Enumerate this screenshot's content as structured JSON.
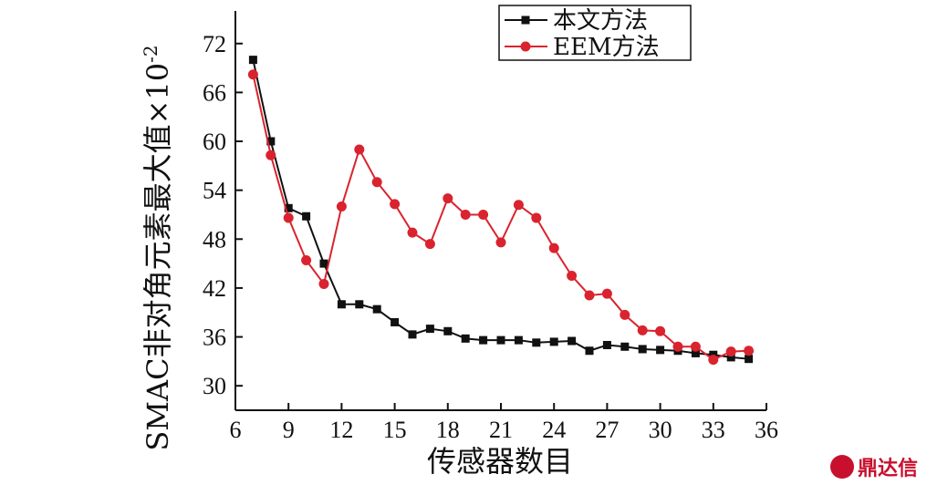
{
  "chart_data": {
    "type": "line",
    "xlabel": "传感器数目",
    "ylabel": "SMAC非对角元素最大值×10",
    "ylabel_exp": "-2",
    "xlim": [
      6,
      36
    ],
    "ylim": [
      27,
      76
    ],
    "xticks": [
      6,
      9,
      12,
      15,
      18,
      21,
      24,
      27,
      30,
      33,
      36
    ],
    "yticks": [
      30,
      36,
      42,
      48,
      54,
      60,
      66,
      72
    ],
    "legend": {
      "placement": "top-right"
    },
    "series": [
      {
        "name": "本文方法",
        "color": "#111111",
        "marker": "square",
        "x": [
          7,
          8,
          9,
          10,
          11,
          12,
          13,
          14,
          15,
          16,
          17,
          18,
          19,
          20,
          21,
          22,
          23,
          24,
          25,
          26,
          27,
          28,
          29,
          30,
          31,
          32,
          33,
          34,
          35
        ],
        "y": [
          70,
          60,
          51.8,
          50.8,
          45,
          40,
          40,
          39.4,
          37.8,
          36.3,
          37,
          36.7,
          35.8,
          35.6,
          35.6,
          35.6,
          35.3,
          35.4,
          35.5,
          34.3,
          35,
          34.8,
          34.5,
          34.4,
          34.3,
          34,
          33.8,
          33.5,
          33.3
        ]
      },
      {
        "name": "EEM方法",
        "color": "#d9232e",
        "marker": "circle",
        "x": [
          7,
          8,
          9,
          10,
          11,
          12,
          13,
          14,
          15,
          16,
          17,
          18,
          19,
          20,
          21,
          22,
          23,
          24,
          25,
          26,
          27,
          28,
          29,
          30,
          31,
          32,
          33,
          34,
          35
        ],
        "y": [
          68.2,
          58.3,
          50.6,
          45.4,
          42.5,
          52,
          59,
          55,
          52.3,
          48.8,
          47.4,
          53,
          51,
          51,
          47.6,
          52.2,
          50.6,
          46.9,
          43.5,
          41.1,
          41.3,
          38.7,
          36.8,
          36.7,
          34.8,
          34.8,
          33.2,
          34.2,
          34.3
        ]
      }
    ]
  },
  "watermark": {
    "text": "鼎达信"
  }
}
